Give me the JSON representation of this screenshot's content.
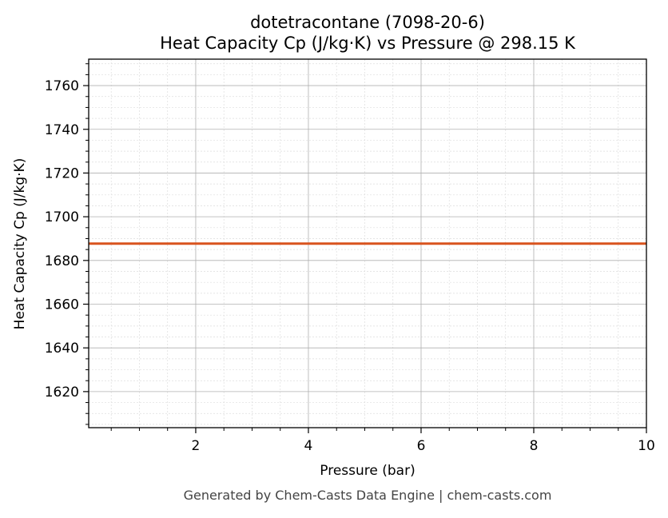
{
  "chart_data": {
    "type": "line",
    "title": "dotetracontane (7098-20-6)",
    "subtitle": "Heat Capacity Cp (J/kg·K) vs Pressure @ 298.15 K",
    "xlabel": "Pressure (bar)",
    "ylabel": "Heat Capacity Cp (J/kg·K)",
    "xlim": [
      0.1,
      10
    ],
    "ylim": [
      1603.5,
      1772.1
    ],
    "xticks": [
      2,
      4,
      6,
      8,
      10
    ],
    "yticks": [
      1620,
      1640,
      1660,
      1680,
      1700,
      1720,
      1740,
      1760
    ],
    "x_minor_step": 0.5,
    "y_minor_step": 5,
    "grid": true,
    "series": [
      {
        "x": [
          0.1,
          10
        ],
        "y": [
          1687.7,
          1687.7
        ],
        "color": "#d9531e"
      }
    ],
    "footer": "Generated by Chem-Casts Data Engine | chem-casts.com"
  }
}
